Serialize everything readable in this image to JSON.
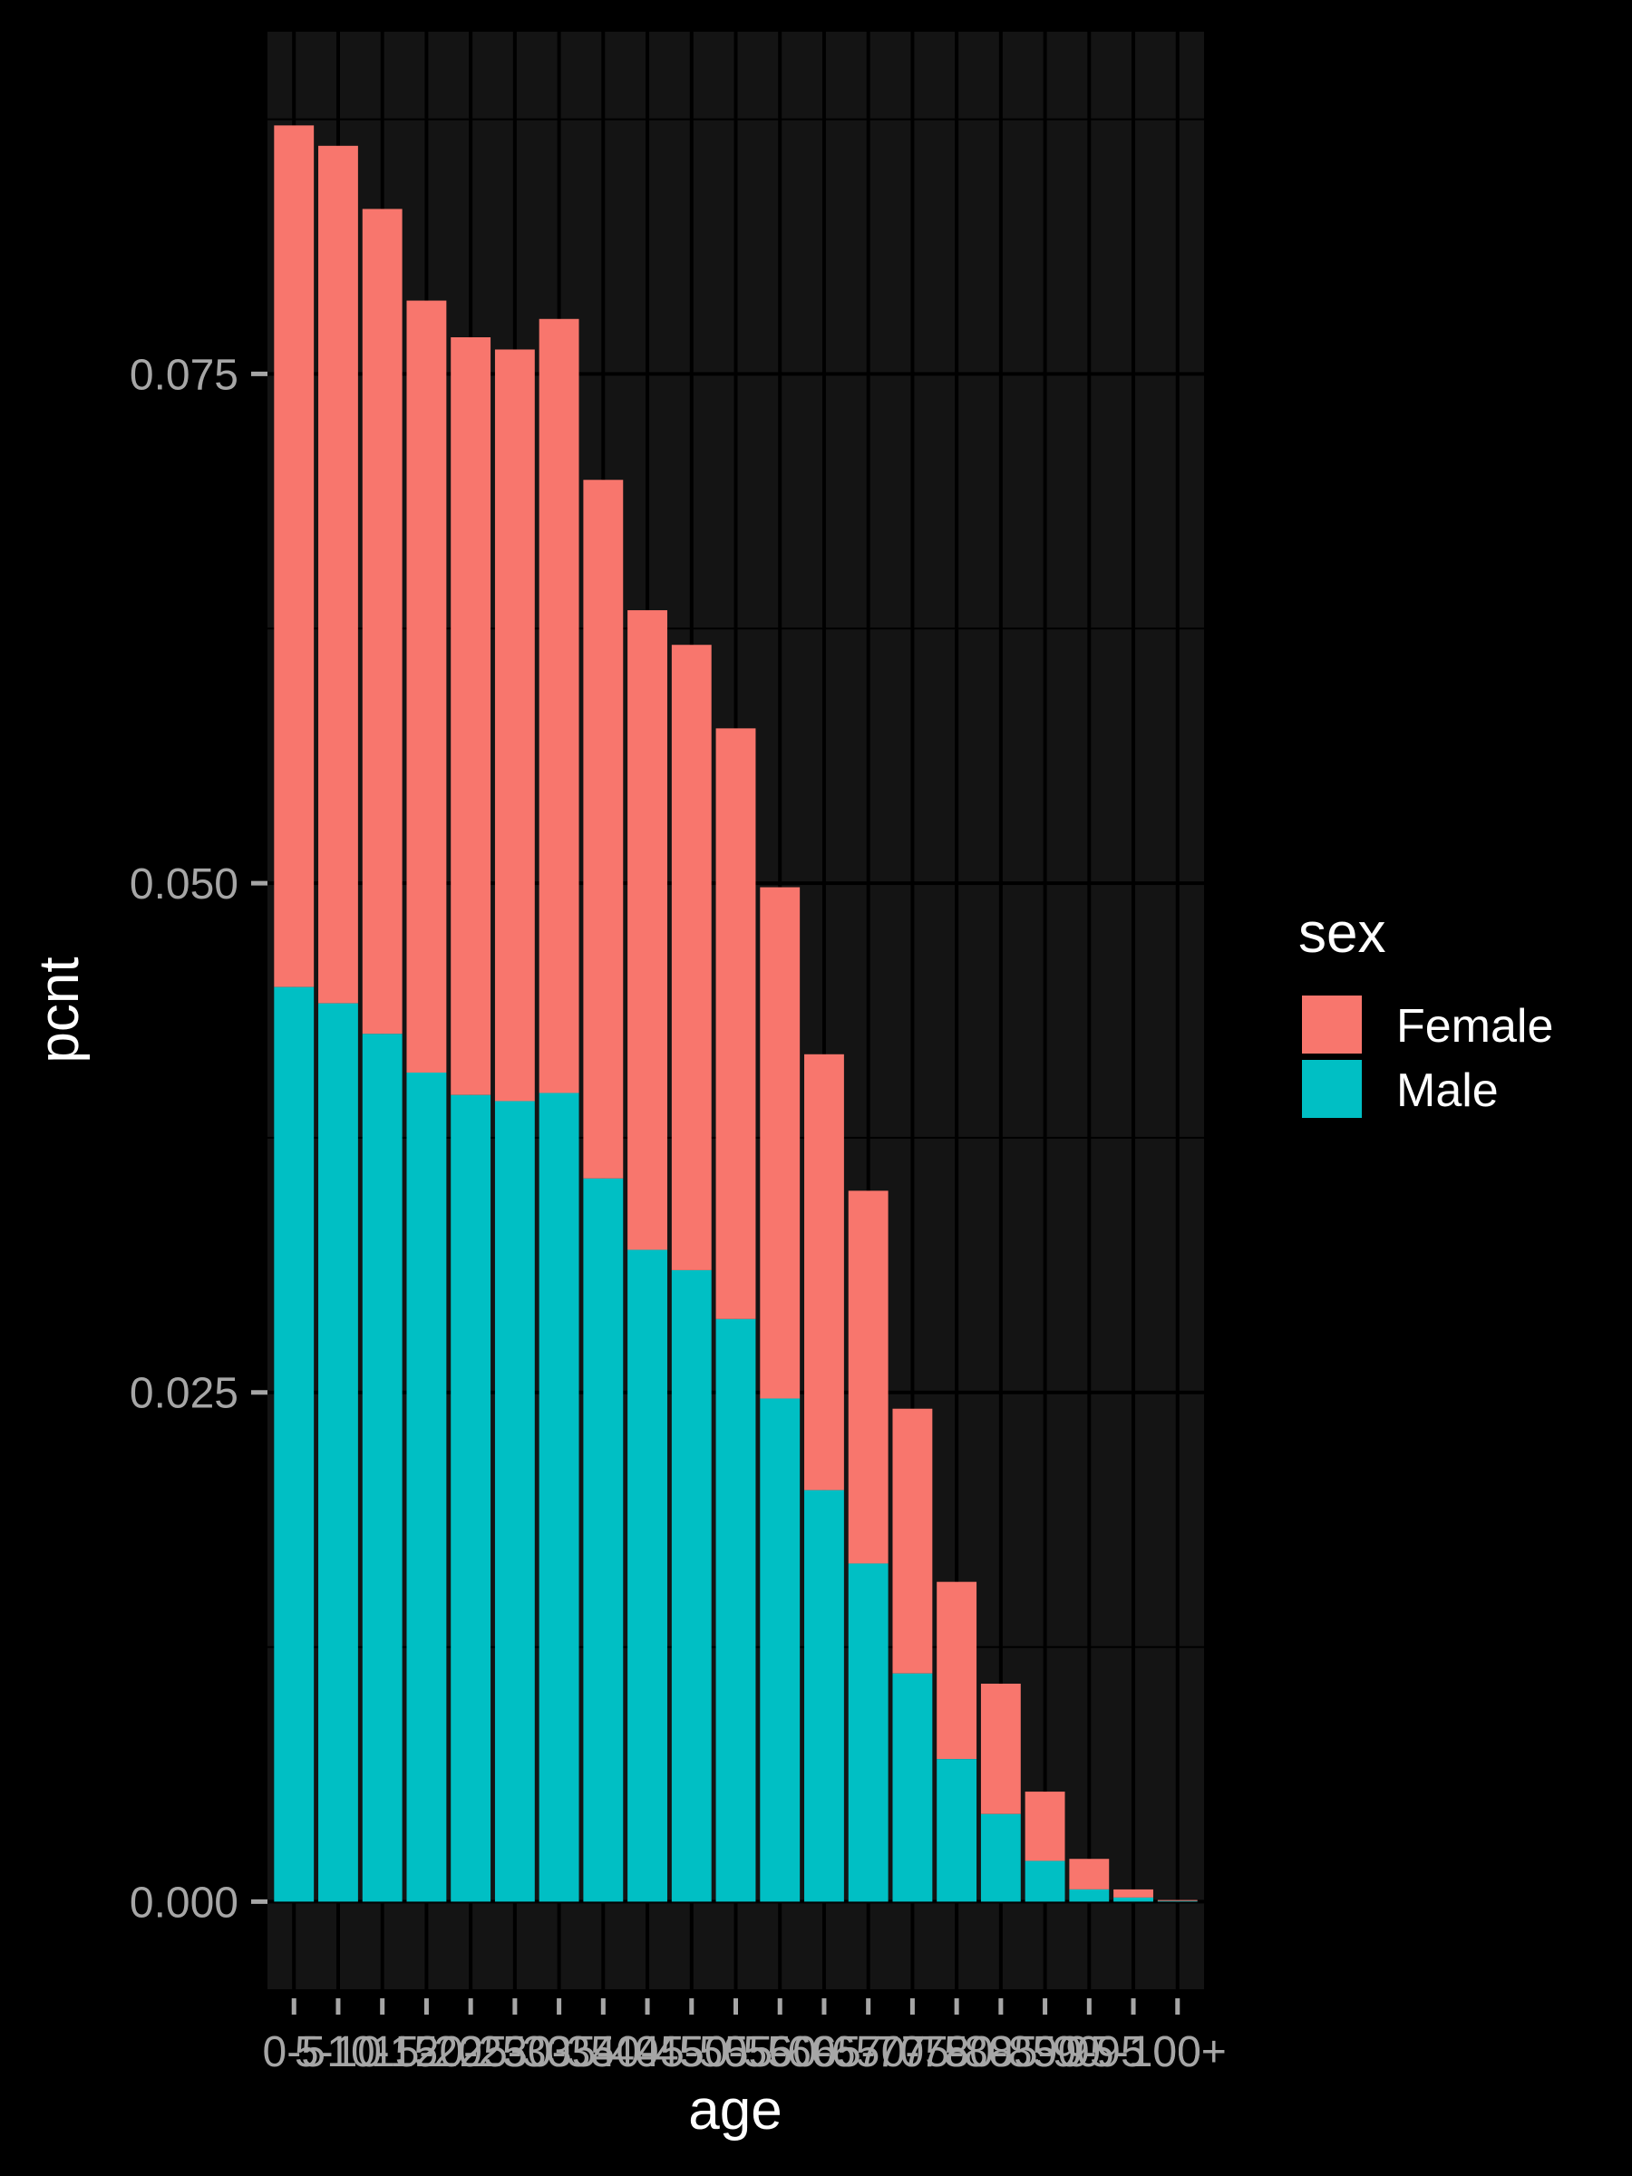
{
  "chart_data": {
    "type": "bar",
    "stacked": true,
    "categories": [
      "0-5",
      "5-10",
      "10-15",
      "15-20",
      "20-25",
      "25-30",
      "30-35",
      "35-40",
      "40-45",
      "45-50",
      "50-55",
      "55-60",
      "60-65",
      "65-70",
      "70-75",
      "75-80",
      "80-85",
      "85-90",
      "90-95",
      "95-100",
      "100+"
    ],
    "series": [
      {
        "name": "Male",
        "color": "#00BFC4",
        "values": [
          0.0449,
          0.0441,
          0.0426,
          0.0407,
          0.0396,
          0.0393,
          0.0397,
          0.0355,
          0.032,
          0.031,
          0.0286,
          0.0247,
          0.0202,
          0.0166,
          0.0112,
          0.007,
          0.0043,
          0.002,
          0.0006,
          0.0002,
          3e-05
        ]
      },
      {
        "name": "Female",
        "color": "#F8766D",
        "values": [
          0.0423,
          0.0421,
          0.0405,
          0.0379,
          0.0372,
          0.0369,
          0.038,
          0.0343,
          0.0314,
          0.0307,
          0.029,
          0.0251,
          0.0214,
          0.0183,
          0.013,
          0.0087,
          0.0064,
          0.0034,
          0.0015,
          0.0004,
          5e-05
        ]
      }
    ],
    "xlabel": "age",
    "ylabel": "pcnt",
    "ylim": [
      -0.0043,
      0.0918
    ],
    "yticks": [
      "0.000",
      "0.025",
      "0.050",
      "0.075"
    ],
    "ytick_values": [
      0,
      0.025,
      0.05,
      0.075
    ],
    "grid": true,
    "legend": {
      "title": "sex",
      "placement": "right",
      "order": [
        "Female",
        "Male"
      ]
    }
  }
}
